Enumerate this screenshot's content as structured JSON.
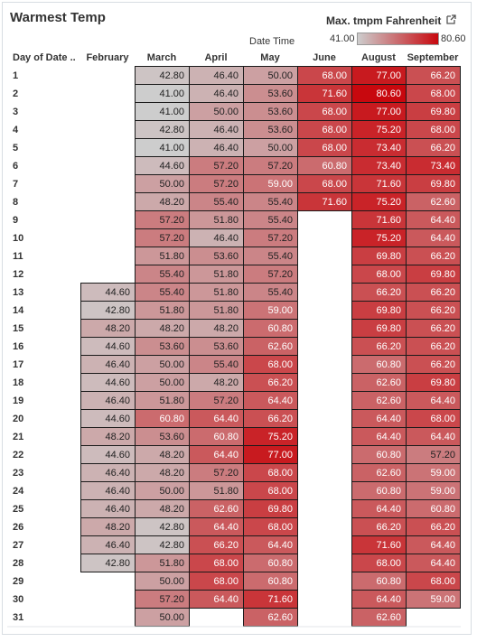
{
  "title": "Warmest Temp",
  "legend": {
    "title": "Max. tmpm Fahrenheit",
    "min_label": "41.00",
    "max_label": "80.60",
    "color_low": "#cdcdcd",
    "color_high": "#c8080e"
  },
  "column_group_label": "Date Time",
  "export_icon": "external-link-icon",
  "chart_data": {
    "type": "heatmap",
    "title": "Warmest Temp",
    "color_legend_title": "Max. tmpm Fahrenheit",
    "color_range": [
      41.0,
      80.6
    ],
    "row_header": "Day of Date ..",
    "column_group_label": "Date Time",
    "columns": [
      "February",
      "March",
      "April",
      "May",
      "June",
      "August",
      "September"
    ],
    "rows": [
      1,
      2,
      3,
      4,
      5,
      6,
      7,
      8,
      9,
      10,
      11,
      12,
      13,
      14,
      15,
      16,
      17,
      18,
      19,
      20,
      21,
      22,
      23,
      24,
      25,
      26,
      27,
      28,
      29,
      30,
      31
    ],
    "values": [
      [
        null,
        42.8,
        46.4,
        50.0,
        68.0,
        77.0,
        66.2
      ],
      [
        null,
        41.0,
        46.4,
        53.6,
        71.6,
        80.6,
        68.0
      ],
      [
        null,
        41.0,
        50.0,
        53.6,
        68.0,
        77.0,
        69.8
      ],
      [
        null,
        42.8,
        46.4,
        53.6,
        68.0,
        75.2,
        68.0
      ],
      [
        null,
        41.0,
        46.4,
        50.0,
        68.0,
        73.4,
        66.2
      ],
      [
        null,
        44.6,
        57.2,
        57.2,
        60.8,
        73.4,
        73.4
      ],
      [
        null,
        50.0,
        57.2,
        59.0,
        68.0,
        71.6,
        69.8
      ],
      [
        null,
        48.2,
        55.4,
        55.4,
        71.6,
        75.2,
        62.6
      ],
      [
        null,
        57.2,
        51.8,
        55.4,
        null,
        71.6,
        64.4
      ],
      [
        null,
        57.2,
        46.4,
        57.2,
        null,
        75.2,
        64.4
      ],
      [
        null,
        51.8,
        53.6,
        55.4,
        null,
        69.8,
        66.2
      ],
      [
        null,
        55.4,
        51.8,
        57.2,
        null,
        68.0,
        69.8
      ],
      [
        44.6,
        55.4,
        51.8,
        55.4,
        null,
        66.2,
        66.2
      ],
      [
        42.8,
        51.8,
        51.8,
        59.0,
        null,
        69.8,
        66.2
      ],
      [
        48.2,
        48.2,
        48.2,
        60.8,
        null,
        69.8,
        66.2
      ],
      [
        44.6,
        53.6,
        53.6,
        62.6,
        null,
        66.2,
        66.2
      ],
      [
        46.4,
        50.0,
        55.4,
        68.0,
        null,
        60.8,
        66.2
      ],
      [
        44.6,
        50.0,
        48.2,
        66.2,
        null,
        62.6,
        69.8
      ],
      [
        46.4,
        51.8,
        57.2,
        64.4,
        null,
        62.6,
        64.4
      ],
      [
        44.6,
        60.8,
        64.4,
        66.2,
        null,
        64.4,
        68.0
      ],
      [
        48.2,
        53.6,
        60.8,
        75.2,
        null,
        64.4,
        64.4
      ],
      [
        44.6,
        48.2,
        64.4,
        77.0,
        null,
        60.8,
        57.2
      ],
      [
        46.4,
        48.2,
        57.2,
        68.0,
        null,
        62.6,
        59.0
      ],
      [
        46.4,
        50.0,
        51.8,
        68.0,
        null,
        60.8,
        59.0
      ],
      [
        46.4,
        48.2,
        62.6,
        69.8,
        null,
        64.4,
        60.8
      ],
      [
        48.2,
        42.8,
        64.4,
        68.0,
        null,
        66.2,
        66.2
      ],
      [
        46.4,
        42.8,
        66.2,
        64.4,
        null,
        71.6,
        64.4
      ],
      [
        42.8,
        51.8,
        68.0,
        60.8,
        null,
        68.0,
        64.4
      ],
      [
        null,
        50.0,
        68.0,
        60.8,
        null,
        60.8,
        68.0
      ],
      [
        null,
        57.2,
        64.4,
        71.6,
        null,
        64.4,
        59.0
      ],
      [
        null,
        50.0,
        null,
        62.6,
        null,
        62.6,
        null
      ]
    ]
  }
}
